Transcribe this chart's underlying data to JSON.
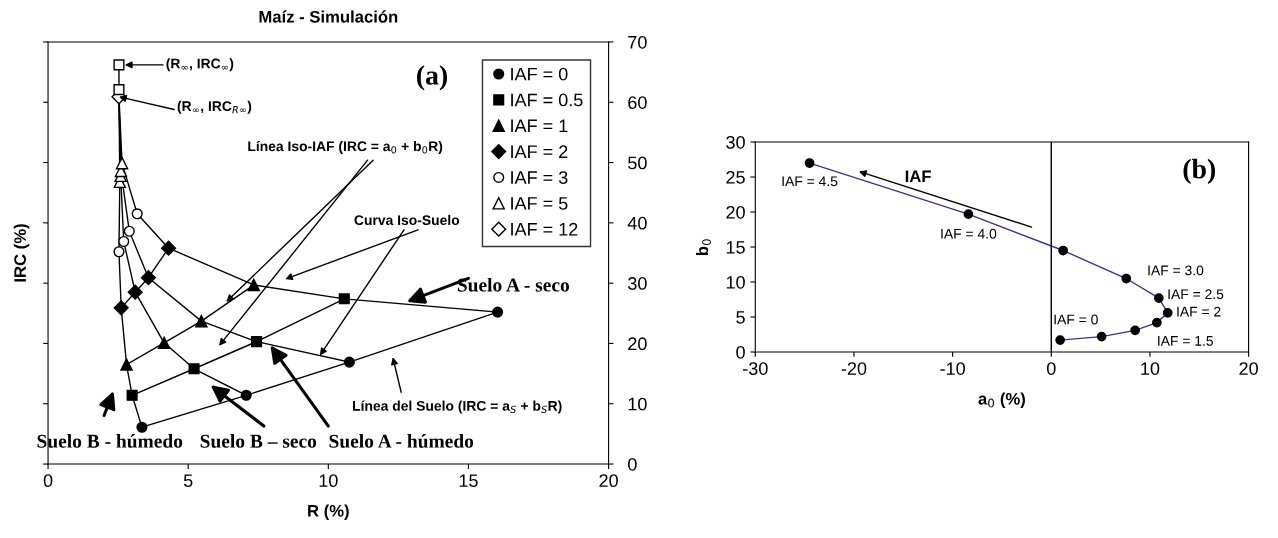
{
  "chart_data": [
    {
      "type": "line",
      "title": "Maíz - Simulación",
      "xlabel": "R (%)",
      "ylabel": "IRC (%)",
      "xlim": [
        0,
        20
      ],
      "xticks": [
        0,
        5,
        10,
        15,
        20
      ],
      "ylim": [
        0,
        70
      ],
      "yticks": [
        0,
        10,
        20,
        30,
        40,
        50,
        60,
        70
      ],
      "grid": false,
      "legend": "top right",
      "series": [
        {
          "name": "IAF = 0",
          "color": "#000000",
          "marker": "circle",
          "x": [
            3.35,
            7.07,
            10.75,
            16.04
          ],
          "values": [
            6.1,
            11.4,
            16.9,
            25.2
          ]
        },
        {
          "name": "IAF = 0.5",
          "color": "#000000",
          "marker": "square",
          "x": [
            3.0,
            5.21,
            7.44,
            10.57
          ],
          "values": [
            11.4,
            15.8,
            20.3,
            27.4
          ]
        },
        {
          "name": "IAF = 1",
          "color": "#000000",
          "marker": "triangle",
          "x": [
            2.8,
            4.14,
            5.47,
            7.34
          ],
          "values": [
            16.5,
            20.1,
            23.7,
            29.7
          ]
        },
        {
          "name": "IAF = 2",
          "color": "#000000",
          "marker": "diamond",
          "x": [
            2.61,
            3.11,
            3.58,
            4.3
          ],
          "values": [
            25.9,
            28.5,
            30.9,
            35.8
          ]
        },
        {
          "name": "IAF = 3",
          "type": "scatter",
          "color": "#ffffff",
          "marker": "circle",
          "x": [
            2.53,
            2.7,
            2.9,
            3.18
          ],
          "values": [
            35.2,
            36.9,
            38.6,
            41.5
          ]
        },
        {
          "name": "IAF = 5",
          "type": "scatter",
          "color": "#ffffff",
          "marker": "triangle",
          "x": [
            2.56,
            2.59,
            2.6,
            2.64
          ],
          "values": [
            46.8,
            47.8,
            48.6,
            49.9
          ]
        },
        {
          "name": "IAF = 12",
          "type": "scatter",
          "color": "#ffffff",
          "marker": "diamond",
          "x": [
            2.53
          ],
          "values": [
            60.9
          ]
        },
        {
          "type": "scatter",
          "color": "#ffffff",
          "marker": "square",
          "x": [
            2.53,
            2.53
          ],
          "values": [
            62.1,
            66.2
          ]
        },
        {
          "color": "#000000",
          "marker": "none",
          "x": [
            3.35,
            3.0,
            2.8,
            2.61,
            2.53,
            2.56,
            2.53,
            2.53,
            2.53
          ],
          "values": [
            6.1,
            11.4,
            16.5,
            25.9,
            35.2,
            46.8,
            60.9,
            62.1,
            66.2
          ]
        },
        {
          "color": "#000000",
          "marker": "none",
          "x": [
            7.07,
            5.21,
            4.14,
            3.11,
            2.7,
            2.59,
            2.53
          ],
          "values": [
            11.4,
            15.8,
            20.1,
            28.5,
            36.9,
            47.8,
            60.9
          ]
        },
        {
          "color": "#000000",
          "marker": "none",
          "x": [
            10.75,
            7.44,
            5.47,
            3.58,
            2.9,
            2.6,
            2.53
          ],
          "values": [
            16.9,
            20.3,
            23.7,
            30.9,
            38.6,
            48.6,
            60.9
          ]
        },
        {
          "color": "#000000",
          "marker": "none",
          "x": [
            16.04,
            10.57,
            7.34,
            4.3,
            3.18,
            2.64,
            2.53
          ],
          "values": [
            25.2,
            27.4,
            29.7,
            35.8,
            41.5,
            49.9,
            60.9
          ]
        }
      ],
      "annotations": [
        "(R$_{∞}$, IRC$_{∞}$)",
        {
          "text": "(R$_{∞}$, IRC$_{R∞}$)",
          "x": 2.53,
          "y": 60.9
        },
        "(a)",
        {
          "text": "Línea Iso-IAF (IRC = a$_{0}$ + b$_{0}$R)",
          "x": 6.36,
          "y": 26.9
        },
        {
          "text": "Curva Iso-Suelo",
          "x": 9.7,
          "y": 18.0
        },
        {
          "text": "Suelo A - seco",
          "x": 12.8,
          "y": 26.9
        },
        "Línea del Suelo (IRC = a$_{S}$ + b$_{S}$R)",
        "Suelo B - húmedo",
        "Suelo B – seco",
        {
          "text": "Suelo A - húmedo",
          "x": 7.93,
          "y": 19.7
        }
      ]
    },
    {
      "type": "line",
      "xlabel": "a$_{0}$ (%)",
      "ylabel": "b$_{0}$",
      "xlim": [
        -30,
        20
      ],
      "xticks": [
        -30,
        -20,
        -10,
        0,
        10,
        20
      ],
      "ylim": [
        0,
        30
      ],
      "yticks": [
        0,
        5,
        10,
        15,
        20,
        25,
        30
      ],
      "grid": false,
      "marker": "circle",
      "ref_lines": [
        {
          "axis": "x",
          "value": 0,
          "color": "#000000"
        }
      ],
      "series": [
        {
          "color": "#333399",
          "x": [
            0.9,
            5.1,
            8.5,
            10.7,
            11.8,
            10.9,
            7.6,
            1.2,
            -8.4,
            -24.5
          ],
          "values": [
            1.7,
            2.2,
            3.1,
            4.2,
            5.6,
            7.7,
            10.5,
            14.5,
            19.7,
            27.0
          ]
        }
      ],
      "annotations": [
        {
          "text": "IAF = 0",
          "x": 0.9,
          "y": 1.7
        },
        {
          "text": "IAF = 1.5",
          "x": 10.7,
          "y": 4.2
        },
        {
          "text": "IAF = 2",
          "x": 11.8,
          "y": 5.6
        },
        {
          "text": "IAF = 2.5",
          "x": 10.9,
          "y": 7.7
        },
        {
          "text": "IAF = 3.0",
          "x": 7.6,
          "y": 10.5
        },
        {
          "text": "IAF = 4.0",
          "x": -8.4,
          "y": 19.7
        },
        {
          "text": "IAF = 4.5",
          "x": -24.5,
          "y": 27.0
        },
        "IAF",
        "(b)"
      ]
    }
  ]
}
